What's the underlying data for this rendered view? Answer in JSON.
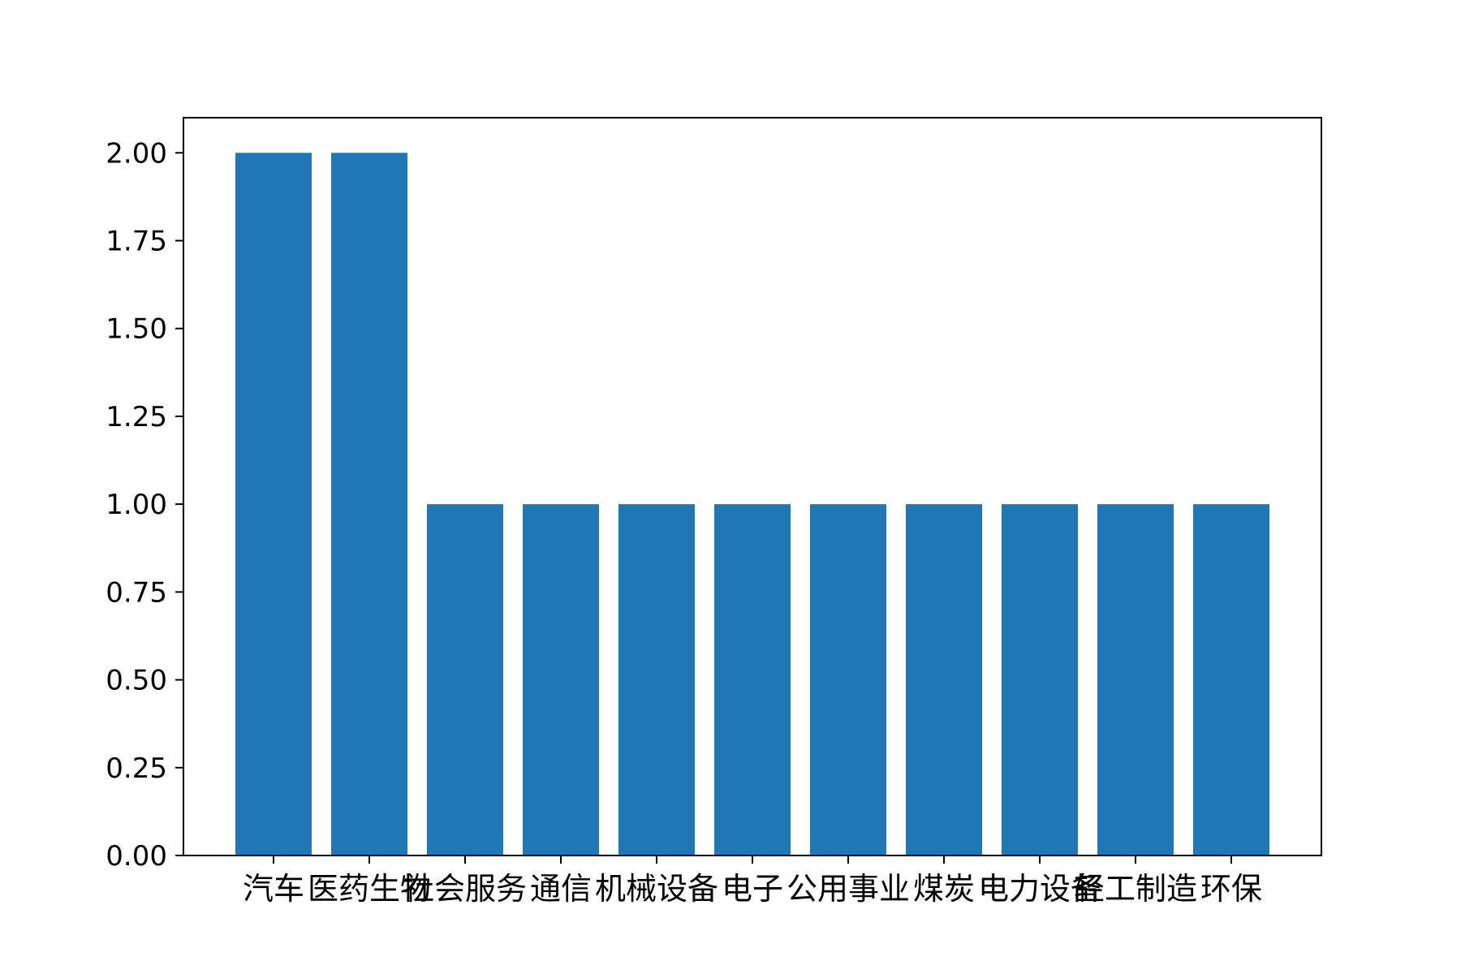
{
  "chart_data": {
    "type": "bar",
    "categories": [
      "汽车",
      "医药生物",
      "社会服务",
      "通信",
      "机械设备",
      "电子",
      "公用事业",
      "煤炭",
      "电力设备",
      "轻工制造",
      "环保"
    ],
    "values": [
      2,
      2,
      1,
      1,
      1,
      1,
      1,
      1,
      1,
      1,
      1
    ],
    "title": "",
    "xlabel": "",
    "ylabel": "",
    "ylim": [
      0,
      2.1
    ],
    "yticks": [
      0,
      0.25,
      0.5,
      0.75,
      1.0,
      1.25,
      1.5,
      1.75,
      2.0
    ],
    "ytick_labels": [
      "0.00",
      "0.25",
      "0.50",
      "0.75",
      "1.00",
      "1.25",
      "1.50",
      "1.75",
      "2.00"
    ],
    "grid": false,
    "legend": "none",
    "bar_color": "#1f77b4"
  }
}
